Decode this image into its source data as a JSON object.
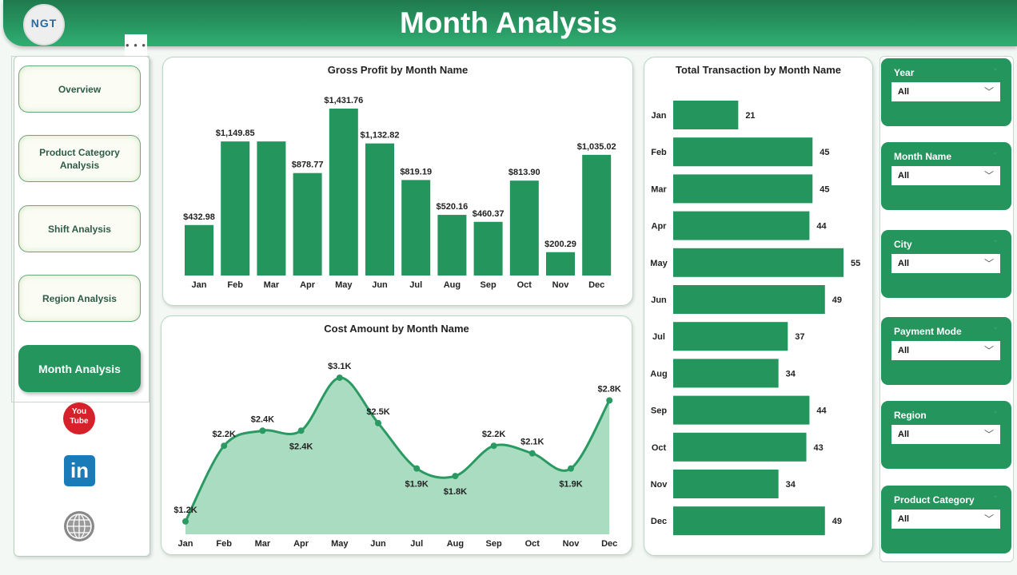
{
  "header": {
    "title": "Month Analysis",
    "logo_text": "NGT",
    "more": "• • •"
  },
  "nav": {
    "items": [
      {
        "label": "Overview"
      },
      {
        "label": "Product Category Analysis"
      },
      {
        "label": "Shift Analysis"
      },
      {
        "label": "Region Analysis"
      },
      {
        "label": "Month Analysis",
        "active": true
      }
    ],
    "social": [
      "youtube-icon",
      "linkedin-icon",
      "globe-icon"
    ],
    "youtube_text": "You Tube",
    "linkedin_text": "in"
  },
  "filters": [
    {
      "label": "Year",
      "value": "All"
    },
    {
      "label": "Month Name",
      "value": "All"
    },
    {
      "label": "City",
      "value": "All"
    },
    {
      "label": "Payment Mode",
      "value": "All"
    },
    {
      "label": "Region",
      "value": "All"
    },
    {
      "label": "Product Category",
      "value": "All"
    }
  ],
  "colors": {
    "accent": "#23955d",
    "area_fill": "#a9dcc0",
    "line": "#2a9a62"
  },
  "chart_data": [
    {
      "type": "bar",
      "title": "Gross Profit by Month Name",
      "categories": [
        "Jan",
        "Feb",
        "Mar",
        "Apr",
        "May",
        "Jun",
        "Jul",
        "Aug",
        "Sep",
        "Oct",
        "Nov",
        "Dec"
      ],
      "values": [
        432.98,
        1149.85,
        1149.85,
        878.77,
        1431.76,
        1132.82,
        819.19,
        520.16,
        460.37,
        813.9,
        200.29,
        1035.02
      ],
      "labels": [
        "$432.98",
        "$1,149.85",
        "",
        "$878.77",
        "$1,431.76",
        "$1,132.82",
        "$819.19",
        "$520.16",
        "$460.37",
        "$813.90",
        "$200.29",
        "$1,035.02"
      ],
      "ylim": [
        0,
        1500
      ]
    },
    {
      "type": "area",
      "title": "Cost Amount by Month Name",
      "categories": [
        "Jan",
        "Feb",
        "Mar",
        "Apr",
        "May",
        "Jun",
        "Jul",
        "Aug",
        "Sep",
        "Oct",
        "Nov",
        "Dec"
      ],
      "values": [
        1.2,
        2.2,
        2.4,
        2.4,
        3.1,
        2.5,
        1.9,
        1.8,
        2.2,
        2.1,
        1.9,
        2.8
      ],
      "labels": [
        "$1.2K",
        "$2.2K",
        "$2.4K",
        "$2.4K",
        "$3.1K",
        "$2.5K",
        "$1.9K",
        "$1.8K",
        "$2.2K",
        "$2.1K",
        "$1.9K",
        "$2.8K"
      ],
      "unit": "K",
      "ylim": [
        1.03,
        3.2
      ]
    },
    {
      "type": "bar",
      "orientation": "horizontal",
      "title": "Total Transaction by Month Name",
      "categories": [
        "Jan",
        "Feb",
        "Mar",
        "Apr",
        "May",
        "Jun",
        "Jul",
        "Aug",
        "Sep",
        "Oct",
        "Nov",
        "Dec"
      ],
      "values": [
        21,
        45,
        45,
        44,
        55,
        49,
        37,
        34,
        44,
        43,
        34,
        49
      ],
      "xlim": [
        0,
        55
      ]
    }
  ]
}
